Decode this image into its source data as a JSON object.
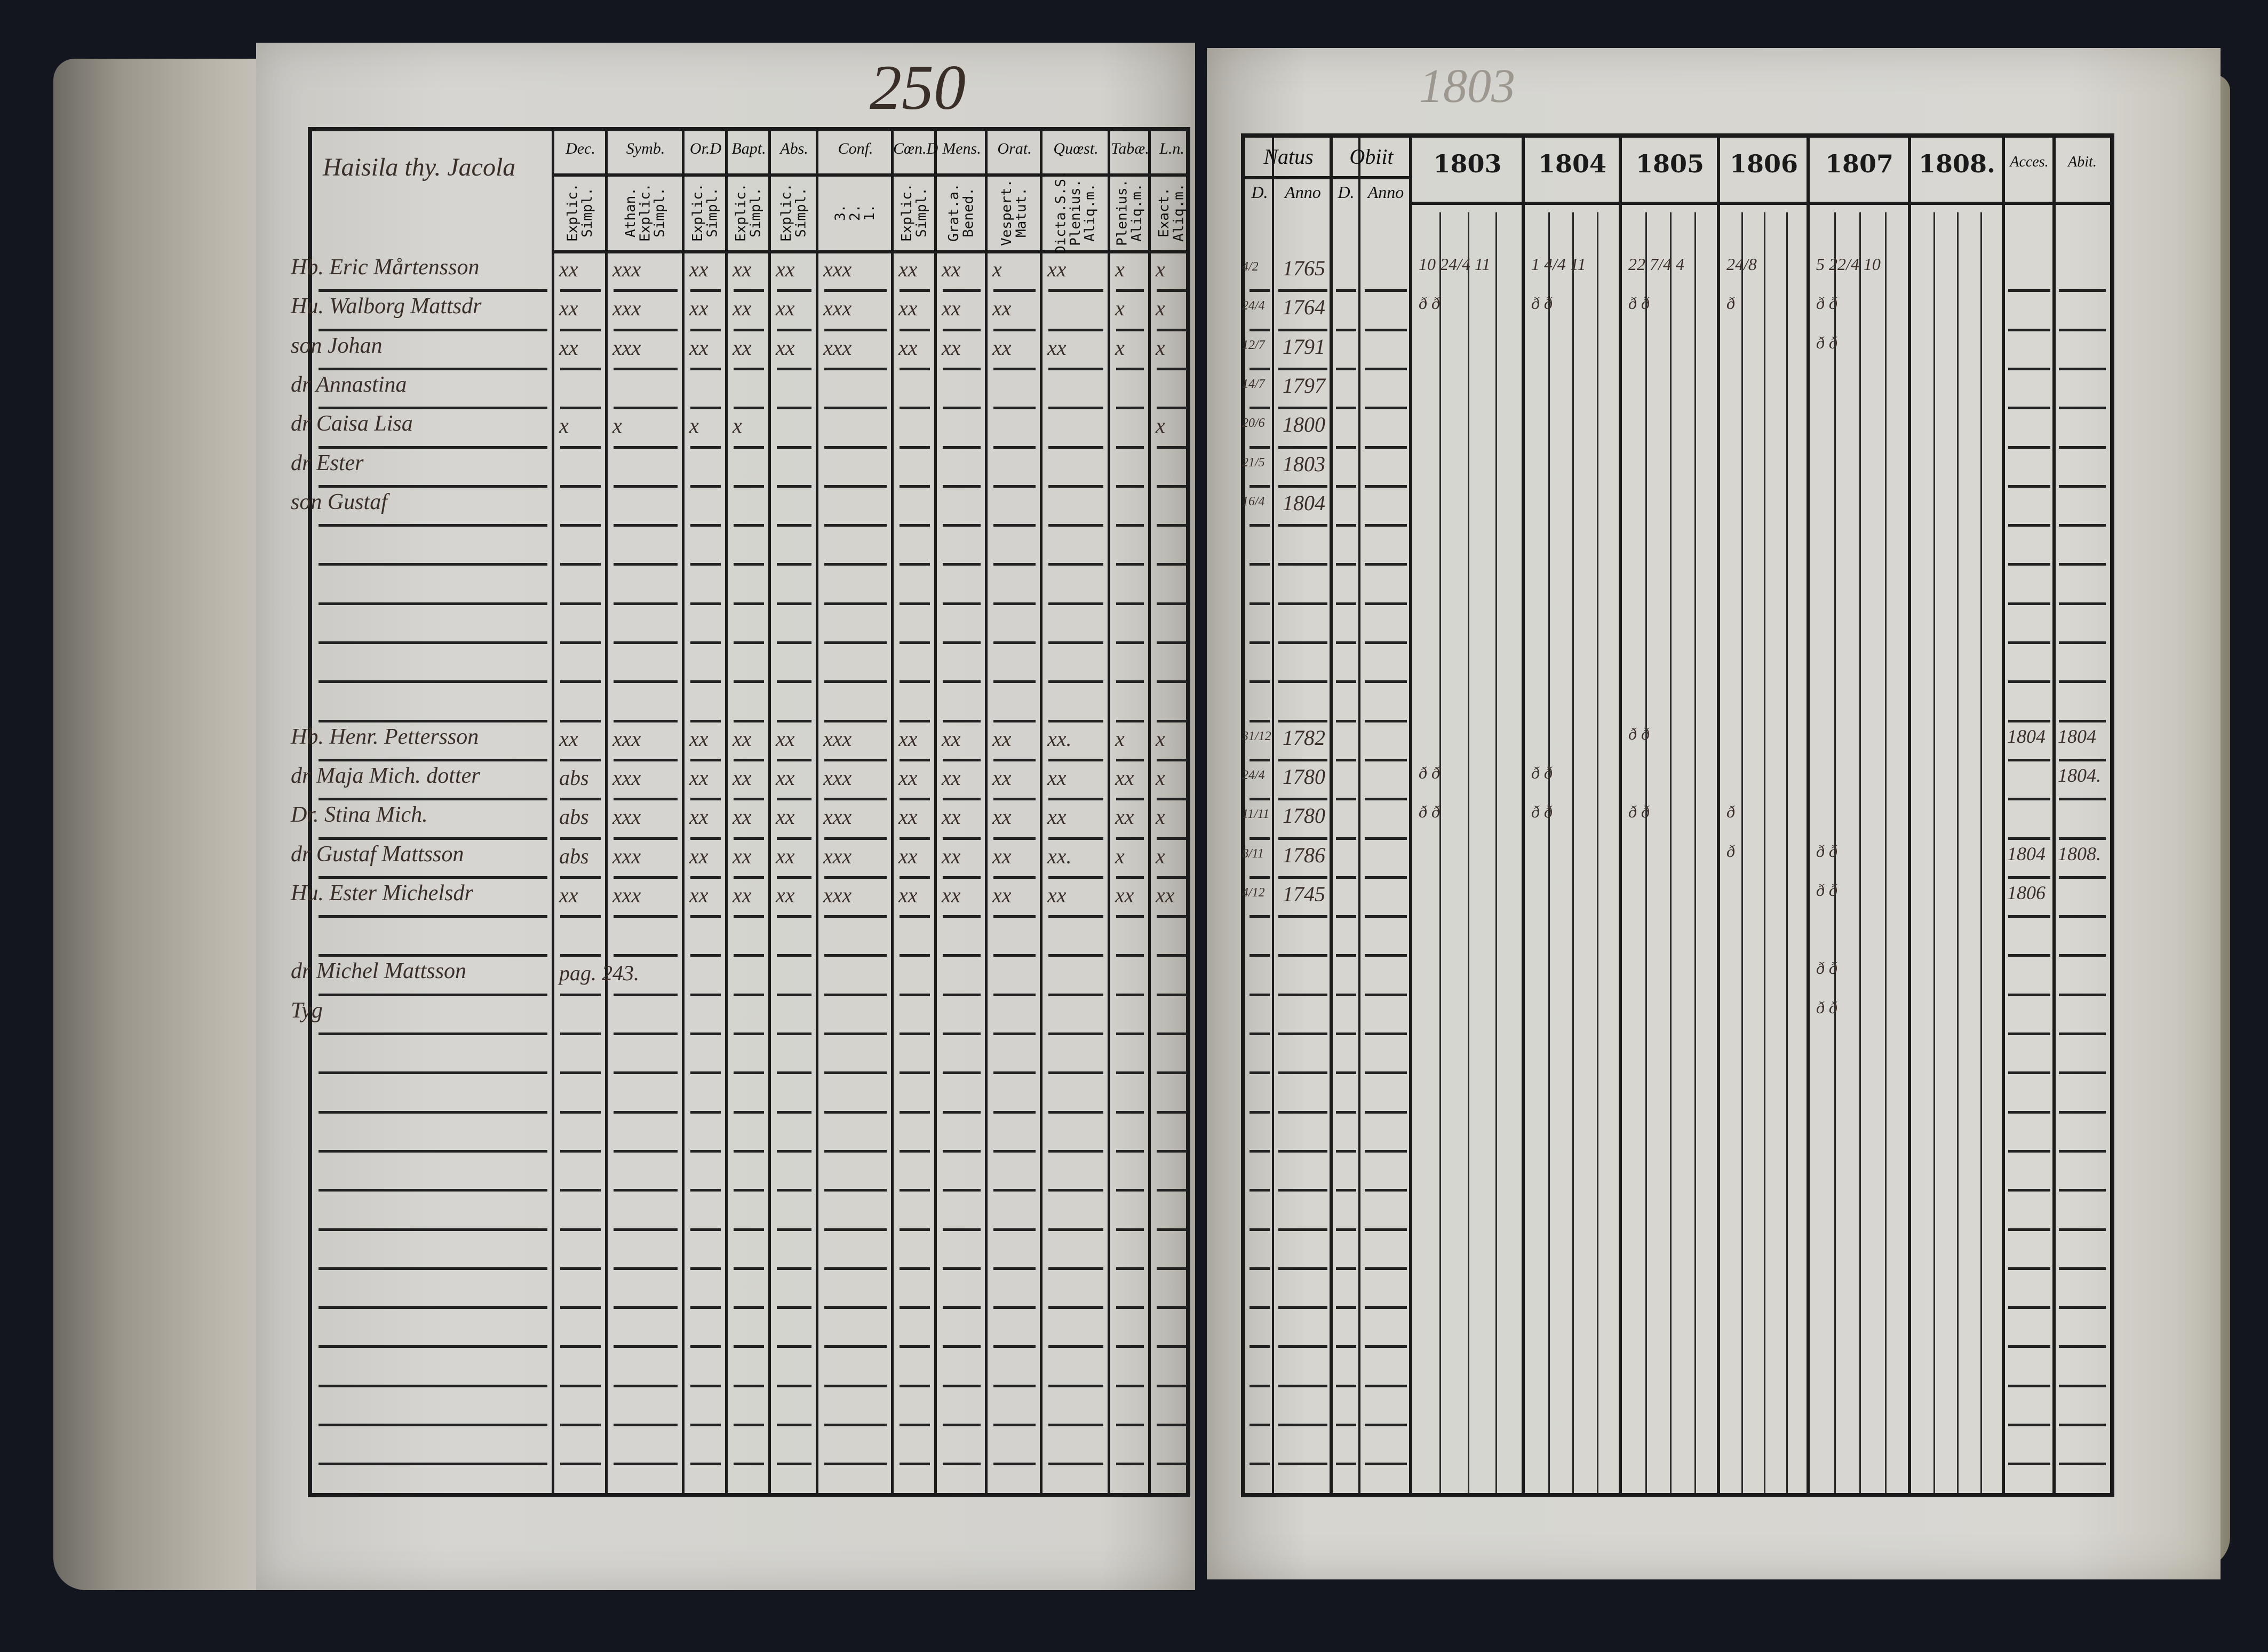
{
  "left_page": {
    "page_number": "250",
    "name_header": "Haisila thy. Jacola",
    "columns": [
      {
        "head": "Dec.",
        "sub": "Explic.\nSimpl."
      },
      {
        "head": "Symb.",
        "sub": "Athan.\nExplic.\nSimpl."
      },
      {
        "head": "Or.D",
        "sub": "Explic.\nSimpl."
      },
      {
        "head": "Bapt.",
        "sub": "Explic.\nSimpl."
      },
      {
        "head": "Abs.",
        "sub": "Explic.\nSimpl."
      },
      {
        "head": "Conf.",
        "sub": "3.\n2.\n1."
      },
      {
        "head": "Cœn.D",
        "sub": "Explic.\nSimpl."
      },
      {
        "head": "Mens.",
        "sub": "Grat.a.\nBened."
      },
      {
        "head": "Orat.",
        "sub": "Vespert.\nMatut."
      },
      {
        "head": "Quœst.",
        "sub": "Dicta.S.S.\nPlenius.\nAliq.m."
      },
      {
        "head": "Tabæ.",
        "sub": "Plenius.\nAliq.m."
      },
      {
        "head": "L.n.",
        "sub": "Exact.\nAliq.m."
      }
    ],
    "rows": [
      {
        "row": 0,
        "name": "Hb. Eric Mårtensson",
        "marks": [
          "xx",
          "xxx",
          "xx",
          "xx",
          "xx",
          "xxx",
          "xx",
          "xx",
          "x",
          "xx",
          "x",
          "x"
        ]
      },
      {
        "row": 1,
        "name": "Hu. Walborg Mattsdr",
        "marks": [
          "xx",
          "xxx",
          "xx",
          "xx",
          "xx",
          "xxx",
          "xx",
          "xx",
          "xx",
          "",
          "x",
          "x"
        ]
      },
      {
        "row": 2,
        "name": "son Johan",
        "marks": [
          "xx",
          "xxx",
          "xx",
          "xx",
          "xx",
          "xxx",
          "xx",
          "xx",
          "xx",
          "xx",
          "x",
          "x"
        ]
      },
      {
        "row": 3,
        "name": "dr Annastina",
        "marks": [
          "",
          "",
          "",
          "",
          "",
          "",
          "",
          "",
          "",
          "",
          "",
          ""
        ]
      },
      {
        "row": 4,
        "name": "dr Caisa Lisa",
        "marks": [
          "x",
          "x",
          "x",
          "x",
          "",
          "",
          "",
          "",
          "",
          "",
          "",
          "x"
        ]
      },
      {
        "row": 5,
        "name": "dr Ester",
        "marks": [
          "",
          "",
          "",
          "",
          "",
          "",
          "",
          "",
          "",
          "",
          "",
          ""
        ]
      },
      {
        "row": 6,
        "name": "son Gustaf",
        "marks": [
          "",
          "",
          "",
          "",
          "",
          "",
          "",
          "",
          "",
          "",
          "",
          ""
        ]
      },
      {
        "row": 12,
        "name": "Hb. Henr. Pettersson",
        "marks": [
          "xx",
          "xxx",
          "xx",
          "xx",
          "xx",
          "xxx",
          "xx",
          "xx",
          "xx",
          "xx.",
          "x",
          "x"
        ]
      },
      {
        "row": 13,
        "name": "dr Maja Mich. dotter",
        "marks": [
          "abs",
          "xxx",
          "xx",
          "xx",
          "xx",
          "xxx",
          "xx",
          "xx",
          "xx",
          "xx",
          "xx",
          "x"
        ]
      },
      {
        "row": 14,
        "name": "Dr. Stina Mich.",
        "marks": [
          "abs",
          "xxx",
          "xx",
          "xx",
          "xx",
          "xxx",
          "xx",
          "xx",
          "xx",
          "xx",
          "xx",
          "x"
        ]
      },
      {
        "row": 15,
        "name": "dr Gustaf Mattsson",
        "marks": [
          "abs",
          "xxx",
          "xx",
          "xx",
          "xx",
          "xxx",
          "xx",
          "xx",
          "xx",
          "xx.",
          "x",
          "x"
        ]
      },
      {
        "row": 16,
        "name": "Hu. Ester Michelsdr",
        "marks": [
          "xx",
          "xxx",
          "xx",
          "xx",
          "xx",
          "xxx",
          "xx",
          "xx",
          "xx",
          "xx",
          "xx",
          "xx"
        ]
      },
      {
        "row": 18,
        "name": "dr Michel Mattsson",
        "marks": [
          "pag. 243.",
          "",
          "",
          "",
          "",
          "",
          "",
          "",
          "",
          "",
          "",
          ""
        ]
      },
      {
        "row": 19,
        "name": "Tyg",
        "marks": [
          "",
          "",
          "",
          "",
          "",
          "",
          "",
          "",
          "",
          "",
          "",
          ""
        ]
      }
    ]
  },
  "right_page": {
    "faint_number": "1803",
    "natus": {
      "head": "Natus",
      "d": "D.",
      "anno": "Anno"
    },
    "obiit": {
      "head": "Obiit",
      "d": "D.",
      "anno": "Anno"
    },
    "years": [
      "1803",
      "1804",
      "1805",
      "1806",
      "1807",
      "1808."
    ],
    "accessit": "Acces.",
    "abiit": "Abit.",
    "rows": [
      {
        "row": 0,
        "d": "4/2",
        "anno": "1765",
        "years": [
          "10 24/4 11",
          "1 4/4 11",
          "22 7/4 4",
          "24/8",
          "5 22/4 10",
          ""
        ],
        "acc": "",
        "abit": ""
      },
      {
        "row": 1,
        "d": "24/4",
        "anno": "1764",
        "years": [
          "ð ð",
          "ð ð",
          "ð ð",
          "ð",
          "ð ð",
          ""
        ],
        "acc": "",
        "abit": ""
      },
      {
        "row": 2,
        "d": "12/7",
        "anno": "1791",
        "years": [
          "",
          "",
          "",
          "",
          "ð ð",
          ""
        ],
        "acc": "",
        "abit": ""
      },
      {
        "row": 3,
        "d": "14/7",
        "anno": "1797",
        "years": [
          "",
          "",
          "",
          "",
          "",
          ""
        ],
        "acc": "",
        "abit": ""
      },
      {
        "row": 4,
        "d": "20/6",
        "anno": "1800",
        "years": [
          "",
          "",
          "",
          "",
          "",
          ""
        ],
        "acc": "",
        "abit": ""
      },
      {
        "row": 5,
        "d": "21/5",
        "anno": "1803",
        "years": [
          "",
          "",
          "",
          "",
          "",
          ""
        ],
        "acc": "",
        "abit": ""
      },
      {
        "row": 6,
        "d": "16/4",
        "anno": "1804",
        "years": [
          "",
          "",
          "",
          "",
          "",
          ""
        ],
        "acc": "",
        "abit": ""
      },
      {
        "row": 12,
        "d": "31/12",
        "anno": "1782",
        "years": [
          "",
          "",
          "ð ð",
          "",
          "",
          ""
        ],
        "acc": "1804",
        "abit": "1804"
      },
      {
        "row": 13,
        "d": "24/4",
        "anno": "1780",
        "years": [
          "ð ð",
          "ð ð",
          "",
          "",
          "",
          ""
        ],
        "acc": "",
        "abit": "1804."
      },
      {
        "row": 14,
        "d": "11/11",
        "anno": "1780",
        "years": [
          "ð ð",
          "ð ð",
          "ð ð",
          "ð",
          "",
          ""
        ],
        "acc": "",
        "abit": ""
      },
      {
        "row": 15,
        "d": "8/11",
        "anno": "1786",
        "years": [
          "",
          "",
          "",
          "ð",
          "ð ð",
          ""
        ],
        "acc": "1804",
        "abit": "1808."
      },
      {
        "row": 16,
        "d": "4/12",
        "anno": "1745",
        "years": [
          "",
          "",
          "",
          "",
          "ð ð",
          ""
        ],
        "acc": "1806",
        "abit": ""
      },
      {
        "row": 18,
        "d": "",
        "anno": "",
        "years": [
          "",
          "",
          "",
          "",
          "ð ð",
          ""
        ],
        "acc": "",
        "abit": ""
      },
      {
        "row": 19,
        "d": "",
        "anno": "",
        "years": [
          "",
          "",
          "",
          "",
          "ð ð",
          ""
        ],
        "acc": "",
        "abit": ""
      }
    ]
  },
  "colors": {
    "paper": "#d2d2cf",
    "ink": "#3a2f28",
    "print": "#1b1b1b",
    "background": "#14161f"
  }
}
